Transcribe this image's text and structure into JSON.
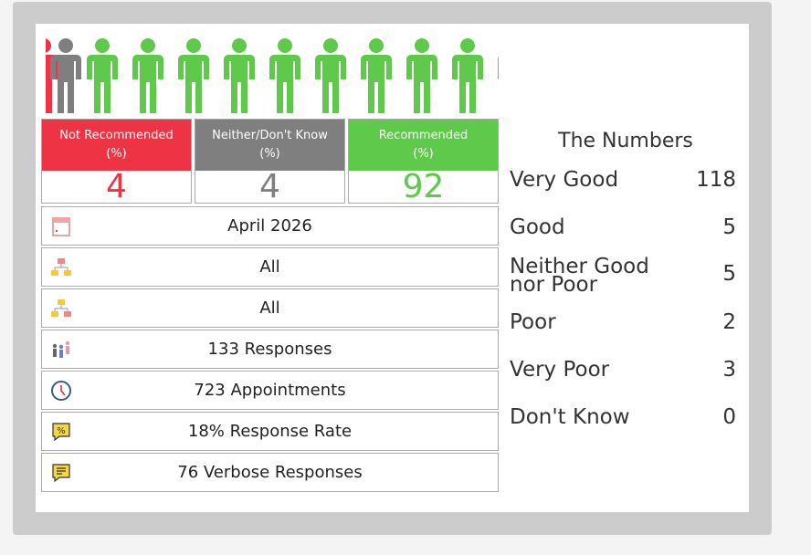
{
  "summary": [
    {
      "label": "Not Recommended\n(%)",
      "value": "4",
      "color": "#ee3344"
    },
    {
      "label": "Neither/Don't Know\n(%)",
      "value": "4",
      "color": "#7f7f7f"
    },
    {
      "label": "Recommended\n(%)",
      "value": "92",
      "color": "#5ec94a"
    }
  ],
  "rows": [
    {
      "icon": "calendar-icon",
      "label": "April 2026"
    },
    {
      "icon": "org-chart-red-icon",
      "label": "All"
    },
    {
      "icon": "org-chart-yellow-icon",
      "label": "All"
    },
    {
      "icon": "people-icon",
      "label": "133 Responses"
    },
    {
      "icon": "clock-icon",
      "label": "723 Appointments"
    },
    {
      "icon": "percent-icon",
      "label": "18% Response Rate"
    },
    {
      "icon": "comment-icon",
      "label": "76 Verbose Responses"
    }
  ],
  "numbers": {
    "title": "The Numbers",
    "items": [
      {
        "label": "Very Good",
        "value": "118"
      },
      {
        "label": "Good",
        "value": "5"
      },
      {
        "label": "Neither Good nor Poor",
        "value": "5"
      },
      {
        "label": "Poor",
        "value": "2"
      },
      {
        "label": "Very Poor",
        "value": "3"
      },
      {
        "label": "Don't Know",
        "value": "0"
      }
    ]
  }
}
